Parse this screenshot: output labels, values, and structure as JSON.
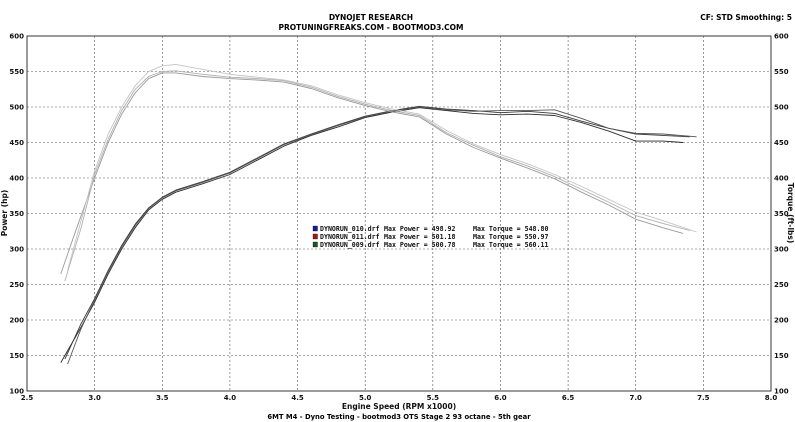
{
  "header": {
    "title": "DYNOJET RESEARCH",
    "subtitle": "PROTUNINGFREAKS.COM - BOOTMOD3.COM",
    "settings": "CF: STD   Smoothing: 5"
  },
  "footer": {
    "caption": "6MT M4 - Dyno Testing - bootmod3 OTS Stage 2 93 octane - 5th gear"
  },
  "chart_data": {
    "type": "line",
    "xlabel": "Engine Speed (RPM x1000)",
    "ylabel_left": "Power (hp)",
    "ylabel_right": "Torque (ft-lbs)",
    "xlim": [
      2.5,
      8.0
    ],
    "ylim": [
      100,
      600
    ],
    "xticks": [
      "2.5",
      "3.0",
      "3.5",
      "4.0",
      "4.5",
      "5.0",
      "5.5",
      "6.0",
      "6.5",
      "7.0",
      "7.5",
      "8.0"
    ],
    "yticks": [
      "100",
      "150",
      "200",
      "250",
      "300",
      "350",
      "400",
      "450",
      "500",
      "550",
      "600"
    ],
    "grid": true,
    "legend": [
      {
        "file": "DYNORUN_010.drf",
        "max_power_label": "Max Power = 498.92",
        "max_torque_label": "Max Torque = 548.80",
        "color": "#1a1aa0"
      },
      {
        "file": "DYNORUN_011.drf",
        "max_power_label": "Max Power = 501.18",
        "max_torque_label": "Max Torque = 550.97",
        "color": "#a01a1a"
      },
      {
        "file": "DYNORUN_009.drf",
        "max_power_label": "Max Power = 500.78",
        "max_torque_label": "Max Torque = 560.11",
        "color": "#1a5a1a"
      }
    ],
    "series": [
      {
        "name": "DYNORUN_010.drf",
        "kind": "power",
        "color": "#2b2b2b",
        "x": [
          2.75,
          2.9,
          3.0,
          3.1,
          3.2,
          3.3,
          3.4,
          3.5,
          3.6,
          3.8,
          4.0,
          4.2,
          4.4,
          4.6,
          4.8,
          5.0,
          5.2,
          5.4,
          5.6,
          5.8,
          6.0,
          6.2,
          6.4,
          6.6,
          6.8,
          7.0,
          7.2,
          7.35
        ],
        "y": [
          140,
          190,
          225,
          265,
          300,
          330,
          355,
          370,
          380,
          392,
          405,
          425,
          445,
          460,
          472,
          485,
          493,
          499,
          495,
          491,
          489,
          490,
          488,
          478,
          466,
          452,
          452,
          450
        ]
      },
      {
        "name": "DYNORUN_011.drf",
        "kind": "power",
        "color": "#3a3a3a",
        "x": [
          2.78,
          2.9,
          3.0,
          3.1,
          3.2,
          3.3,
          3.4,
          3.5,
          3.6,
          3.8,
          4.0,
          4.2,
          4.4,
          4.6,
          4.8,
          5.0,
          5.2,
          5.4,
          5.6,
          5.8,
          6.0,
          6.2,
          6.4,
          6.6,
          6.8,
          7.0,
          7.2,
          7.4
        ],
        "y": [
          145,
          195,
          230,
          270,
          305,
          335,
          358,
          373,
          383,
          395,
          408,
          428,
          448,
          462,
          475,
          487,
          495,
          501,
          497,
          495,
          492,
          494,
          491,
          480,
          470,
          462,
          460,
          458
        ]
      },
      {
        "name": "DYNORUN_009.drf",
        "kind": "power",
        "color": "#555555",
        "x": [
          2.8,
          2.9,
          3.0,
          3.1,
          3.2,
          3.3,
          3.4,
          3.5,
          3.6,
          3.8,
          4.0,
          4.2,
          4.4,
          4.6,
          4.8,
          5.0,
          5.2,
          5.4,
          5.6,
          5.8,
          6.0,
          6.2,
          6.4,
          6.6,
          6.8,
          7.0,
          7.2,
          7.45
        ],
        "y": [
          138,
          188,
          228,
          268,
          303,
          333,
          357,
          372,
          382,
          394,
          407,
          427,
          447,
          461,
          474,
          486,
          494,
          500,
          496,
          494,
          495,
          495,
          496,
          484,
          470,
          463,
          462,
          458
        ]
      },
      {
        "name": "DYNORUN_010.drf",
        "kind": "torque",
        "color": "#9a9a9a",
        "x": [
          2.75,
          2.85,
          3.0,
          3.1,
          3.2,
          3.3,
          3.4,
          3.5,
          3.6,
          3.8,
          4.0,
          4.2,
          4.4,
          4.6,
          4.8,
          5.0,
          5.2,
          5.4,
          5.6,
          5.8,
          6.0,
          6.2,
          6.4,
          6.6,
          6.8,
          7.0,
          7.2,
          7.35
        ],
        "y": [
          265,
          320,
          400,
          450,
          490,
          520,
          540,
          548,
          548,
          543,
          540,
          538,
          535,
          526,
          513,
          502,
          493,
          486,
          462,
          443,
          428,
          414,
          399,
          380,
          362,
          342,
          330,
          322
        ]
      },
      {
        "name": "DYNORUN_011.drf",
        "kind": "torque",
        "color": "#b0b0b0",
        "x": [
          2.78,
          2.9,
          3.0,
          3.1,
          3.2,
          3.3,
          3.4,
          3.5,
          3.6,
          3.8,
          4.0,
          4.2,
          4.4,
          4.6,
          4.8,
          5.0,
          5.2,
          5.4,
          5.6,
          5.8,
          6.0,
          6.2,
          6.4,
          6.6,
          6.8,
          7.0,
          7.2,
          7.4
        ],
        "y": [
          255,
          330,
          405,
          455,
          495,
          525,
          543,
          550,
          551,
          546,
          542,
          540,
          537,
          528,
          515,
          504,
          495,
          488,
          464,
          446,
          430,
          417,
          402,
          384,
          366,
          347,
          336,
          326
        ]
      },
      {
        "name": "DYNORUN_009.drf",
        "kind": "torque",
        "color": "#c4c4c4",
        "x": [
          2.8,
          2.9,
          3.0,
          3.1,
          3.2,
          3.3,
          3.4,
          3.5,
          3.6,
          3.8,
          4.0,
          4.2,
          4.4,
          4.6,
          4.8,
          5.0,
          5.2,
          5.4,
          5.6,
          5.8,
          6.0,
          6.2,
          6.4,
          6.6,
          6.8,
          7.0,
          7.2,
          7.45
        ],
        "y": [
          270,
          340,
          410,
          462,
          500,
          530,
          550,
          558,
          560,
          553,
          546,
          542,
          538,
          530,
          517,
          506,
          497,
          490,
          467,
          448,
          433,
          420,
          405,
          388,
          370,
          352,
          340,
          324
        ]
      }
    ]
  }
}
